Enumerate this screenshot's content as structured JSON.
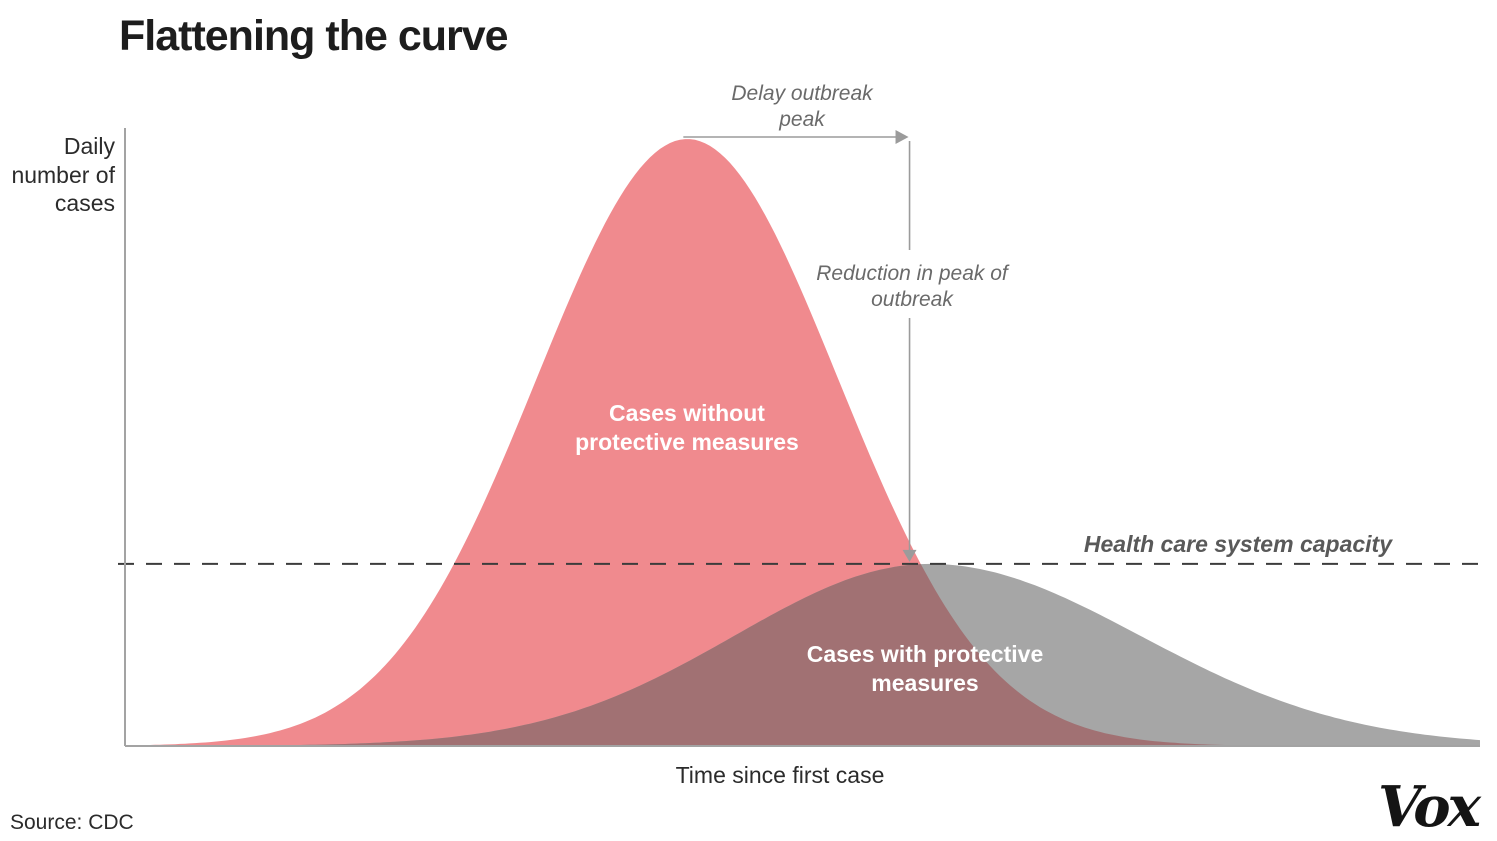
{
  "chart_data": {
    "type": "area",
    "title": "Flattening the curve",
    "xlabel": "Time since first case",
    "ylabel": "Daily number of cases",
    "x_axis_ticks": [],
    "y_axis_ticks": [],
    "axes_quantitative": false,
    "series": [
      {
        "name": "Cases without protective measures",
        "shape": "gaussian",
        "peak_x_frac": 0.415,
        "height_frac": 1.0,
        "sigma_left_frac": 0.111,
        "sigma_right_frac": 0.111,
        "color": "#f08a8e",
        "label_color": "#ffffff"
      },
      {
        "name": "Cases with protective measures",
        "shape": "gaussian",
        "peak_x_frac": 0.594,
        "height_frac": 0.3,
        "sigma_left_frac": 0.144,
        "sigma_right_frac": 0.155,
        "color": "#a6a6a6",
        "label_color": "#ffffff"
      }
    ],
    "overlap_color": "#a17173",
    "capacity_line": {
      "label": "Health care system capacity",
      "y_frac": 0.3,
      "style": "dashed",
      "color": "#3c3c3c"
    },
    "annotations": {
      "delay": {
        "text": "Delay outbreak peak"
      },
      "reduction": {
        "text": "Reduction in peak of outbreak"
      },
      "vline_x_frac": 0.579,
      "arrow_color": "#9b9b9b"
    },
    "axis_color": "#a3a3a3",
    "source": "Source: CDC",
    "brand": "Vox"
  }
}
